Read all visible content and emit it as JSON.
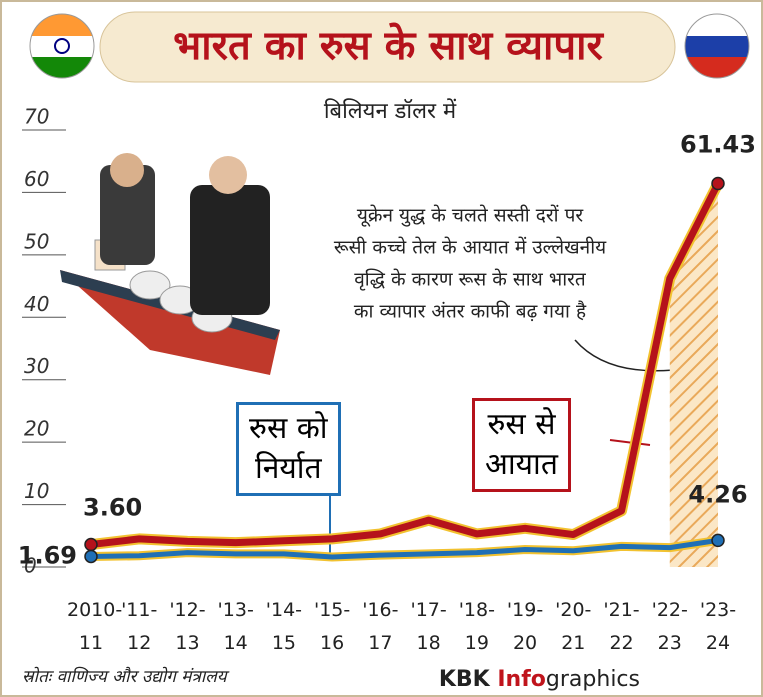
{
  "chart_data": {
    "type": "line",
    "title": "भारत का रुस के साथ व्यापार",
    "subtitle": "बिलियन डॉलर में",
    "categories": [
      "2010-\n11",
      "'11-\n12",
      "'12-\n13",
      "'13-\n14",
      "'14-\n15",
      "'15-\n16",
      "'16-\n17",
      "'17-\n18",
      "'18-\n19",
      "'19-\n20",
      "'20-\n21",
      "'21-\n22",
      "'22-\n23",
      "'23-\n24"
    ],
    "series": [
      {
        "name": "रुस से\nआयात",
        "color": "#b5121b",
        "values": [
          3.6,
          4.5,
          4.1,
          3.9,
          4.2,
          4.5,
          5.3,
          7.5,
          5.3,
          6.2,
          5.2,
          9.0,
          46.2,
          61.43
        ],
        "value_labels": [
          "3.60",
          null,
          null,
          null,
          null,
          null,
          null,
          null,
          null,
          null,
          null,
          null,
          null,
          "61.43"
        ]
      },
      {
        "name": "रुस को\nनिर्यात",
        "color": "#1f6fb5",
        "values": [
          1.69,
          1.8,
          2.3,
          2.1,
          2.1,
          1.6,
          1.9,
          2.1,
          2.3,
          2.8,
          2.6,
          3.3,
          3.1,
          4.26
        ],
        "value_labels": [
          "1.69",
          null,
          null,
          null,
          null,
          null,
          null,
          null,
          null,
          null,
          null,
          null,
          null,
          "4.26"
        ]
      }
    ],
    "ylim": [
      0,
      70
    ],
    "yticks": [
      0,
      10,
      20,
      30,
      40,
      50,
      60,
      70
    ],
    "annotation": [
      "यूक्रेन युद्ध के चलते  सस्ती दरों पर",
      "रूसी कच्चे तेल के आयात में उल्लेखनीय",
      "वृद्धि के कारण रूस के साथ भारत",
      "का व्यापार अंतर काफी बढ़ गया है"
    ],
    "source": "स्रोतः वाणिज्य और उद्योग मंत्रालय",
    "brand": {
      "prefix": "KBK",
      "highlight": "Info",
      "suffix": "graphics"
    }
  }
}
